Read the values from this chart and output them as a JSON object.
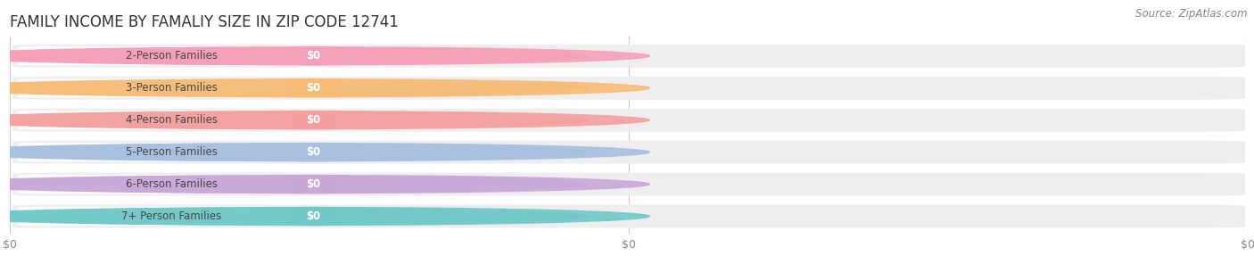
{
  "title": "FAMILY INCOME BY FAMALIY SIZE IN ZIP CODE 12741",
  "source": "Source: ZipAtlas.com",
  "categories": [
    "2-Person Families",
    "3-Person Families",
    "4-Person Families",
    "5-Person Families",
    "6-Person Families",
    "7+ Person Families"
  ],
  "values": [
    0,
    0,
    0,
    0,
    0,
    0
  ],
  "bar_colors": [
    "#f5a0b8",
    "#f7bc78",
    "#f5a0a0",
    "#a8bfe0",
    "#c8a8d8",
    "#72c8c8"
  ],
  "value_labels": [
    "$0",
    "$0",
    "$0",
    "$0",
    "$0",
    "$0"
  ],
  "background_color": "#ffffff",
  "bar_bg_color": "#eeeeee",
  "xticks": [
    0.0,
    0.5,
    1.0
  ],
  "xtick_labels": [
    "$0",
    "$0",
    "$0"
  ],
  "title_fontsize": 12,
  "label_fontsize": 8.5,
  "value_fontsize": 8.5,
  "source_fontsize": 8.5
}
